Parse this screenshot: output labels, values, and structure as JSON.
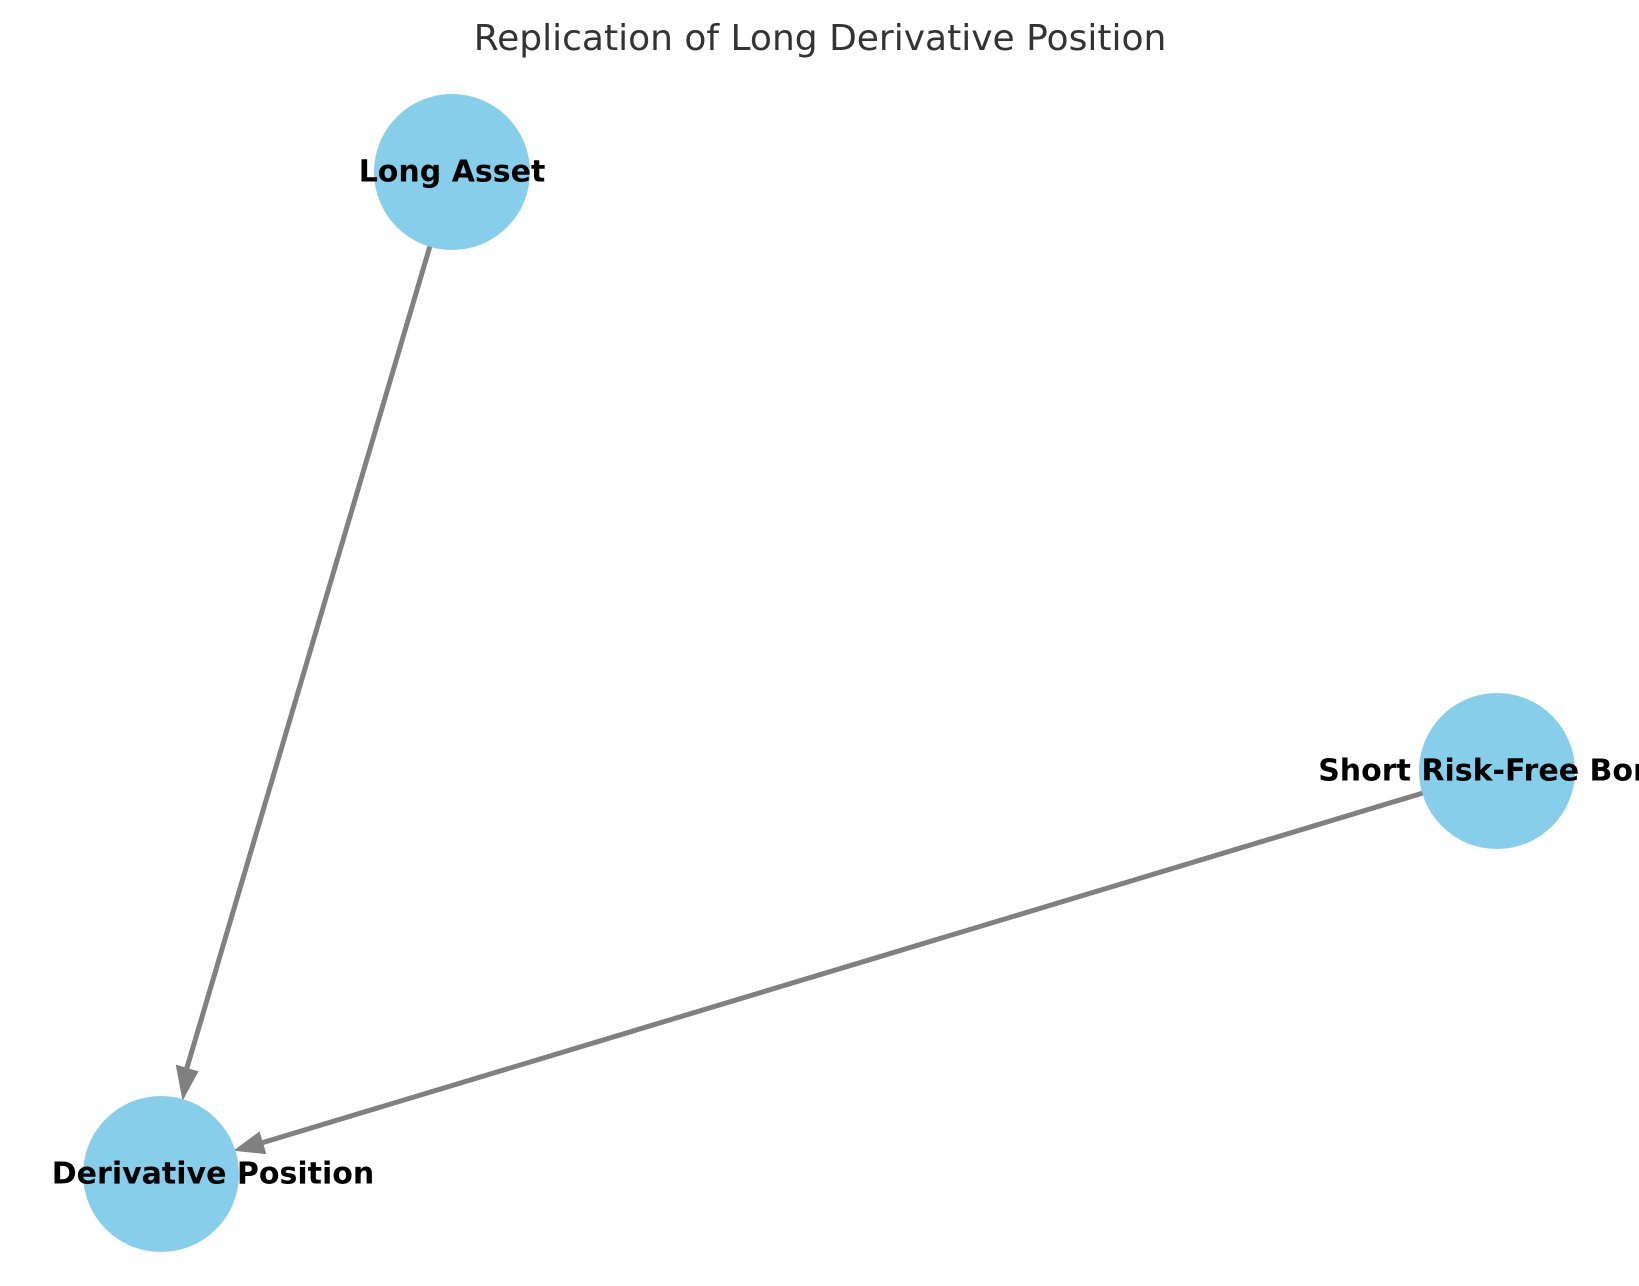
{
  "diagram": {
    "title": "Replication of Long Derivative Position",
    "nodes": [
      {
        "id": "long_asset",
        "label": "Long Asset"
      },
      {
        "id": "short_bond",
        "label": "Short Risk-Free Bond"
      },
      {
        "id": "derivative",
        "label": "Derivative Position"
      }
    ],
    "edges": [
      {
        "from": "long_asset",
        "to": "derivative"
      },
      {
        "from": "short_bond",
        "to": "derivative"
      }
    ],
    "colors": {
      "node_fill": "#87ceeb",
      "edge": "#808080",
      "label": "#000000",
      "title": "#333333"
    }
  }
}
